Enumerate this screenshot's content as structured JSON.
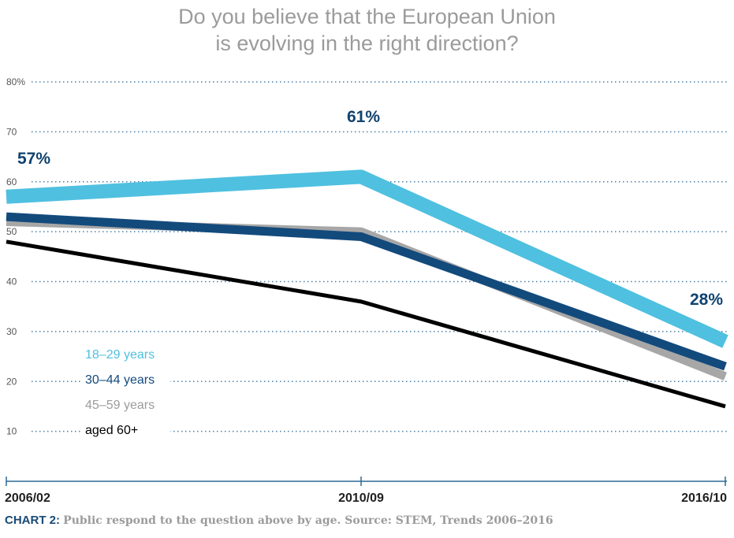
{
  "chart_data": {
    "type": "line",
    "title_lines": [
      "Do you believe that the European Union",
      "is evolving in the right direction?"
    ],
    "categories": [
      "2006/02",
      "2010/09",
      "2016/10"
    ],
    "ylim": [
      0,
      80
    ],
    "yticks": [
      "",
      "10",
      "20",
      "30",
      "40",
      "50",
      "60",
      "70",
      "80%"
    ],
    "grid": "dotted horizontal",
    "series": [
      {
        "name": "18–29 years",
        "values": [
          57,
          61,
          28
        ],
        "color": "#4fc0e0"
      },
      {
        "name": "30–44 years",
        "values": [
          53,
          49,
          23
        ],
        "color": "#134a7c"
      },
      {
        "name": "45–59 years",
        "values": [
          52,
          50,
          21
        ],
        "color": "#a7a7a7"
      },
      {
        "name": "aged 60+",
        "values": [
          48,
          36,
          15
        ],
        "color": "#000000"
      }
    ],
    "data_labels": [
      "57%",
      "61%",
      "28%"
    ],
    "legend": "bottom-left, inside plot"
  },
  "caption": {
    "label": "CHART 2:",
    "text": "Public respond to the question above by age. Source: STEM, Trends 2006–2016"
  }
}
